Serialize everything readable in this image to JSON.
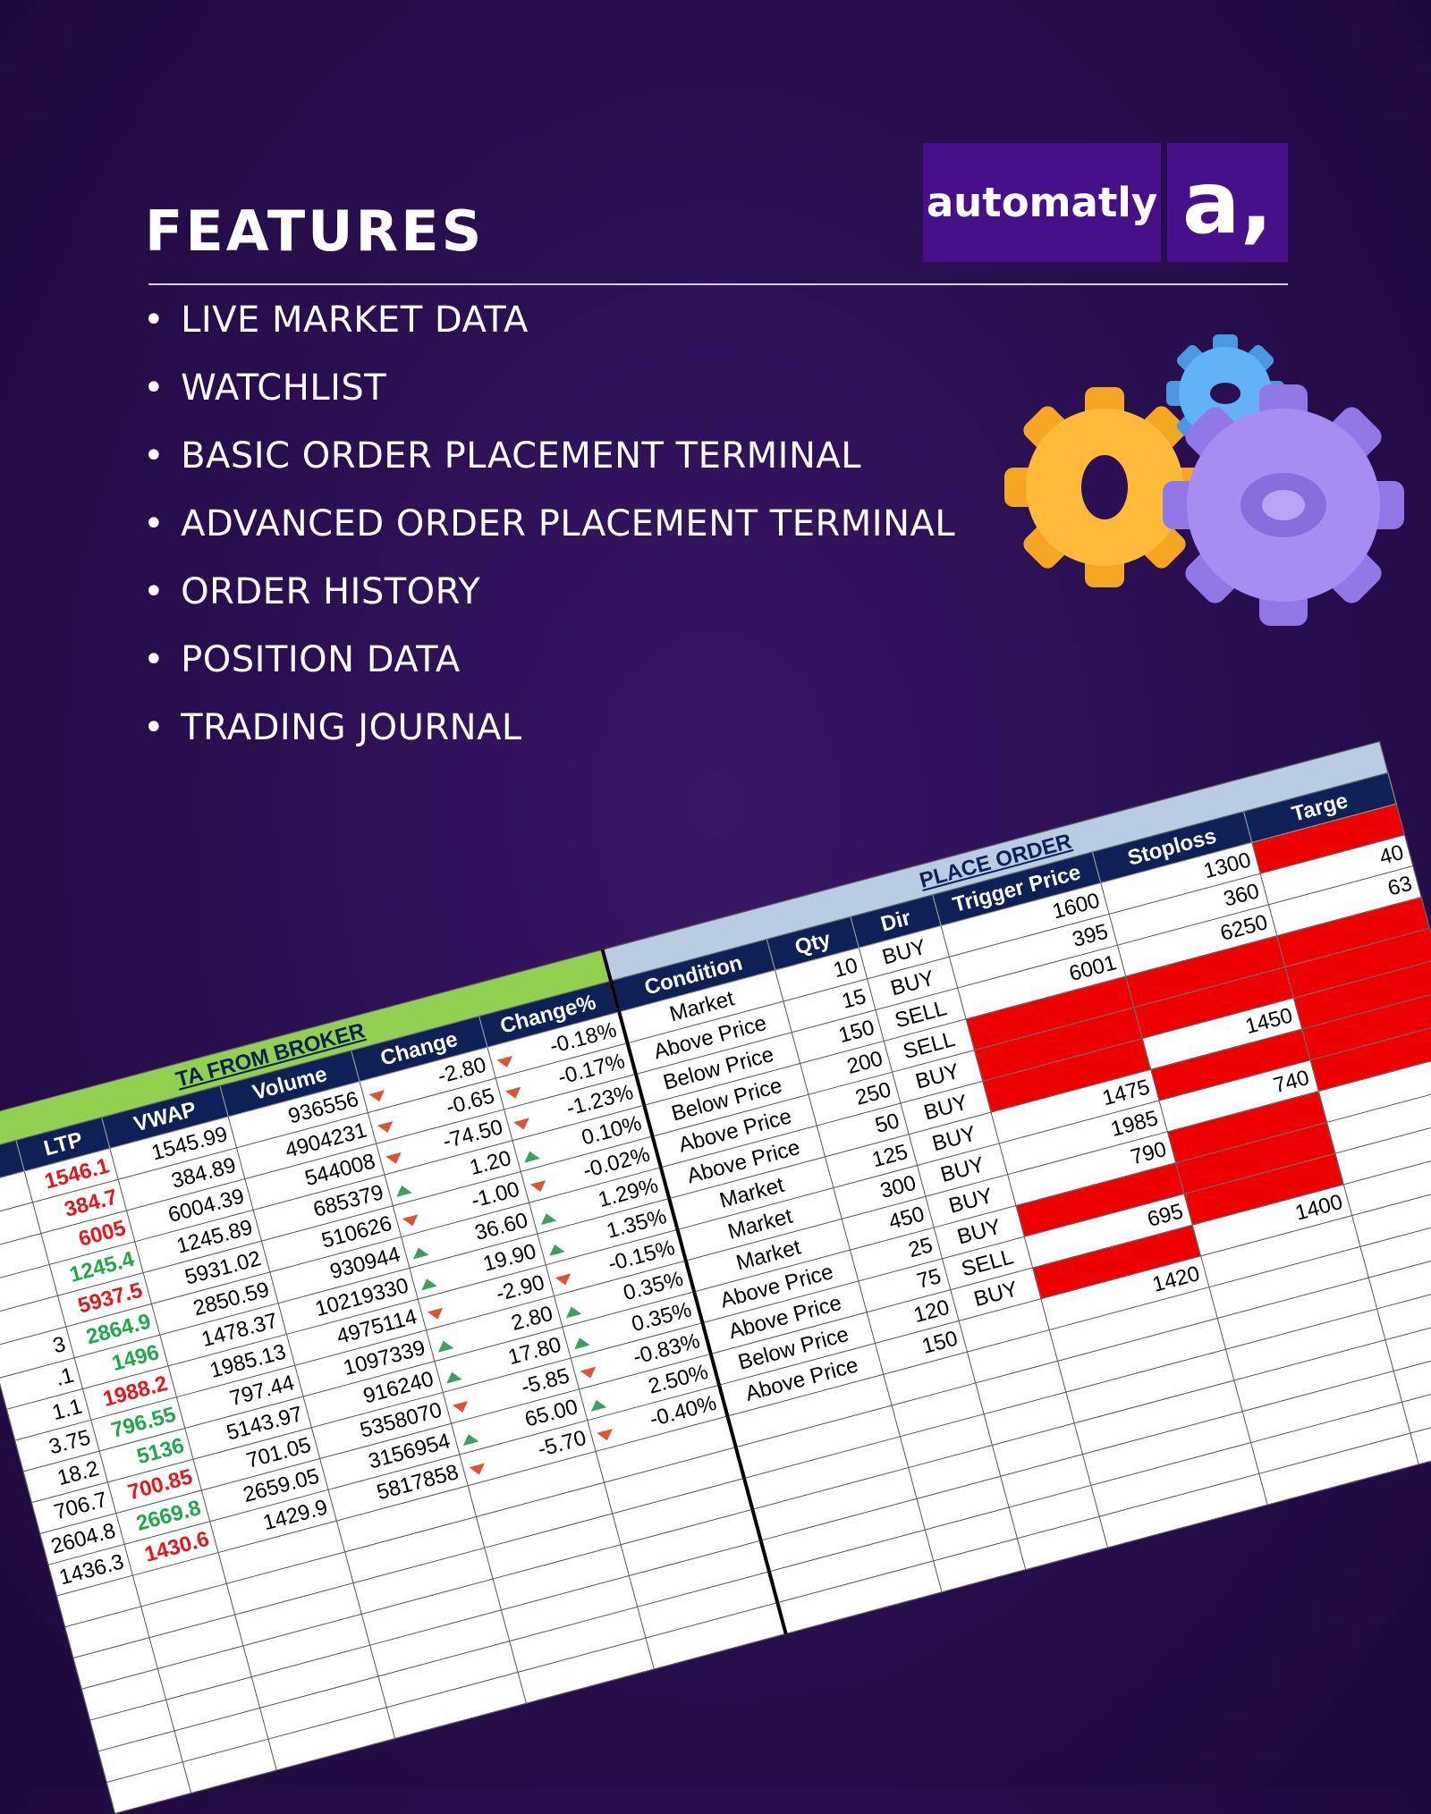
{
  "header": {
    "title": "FEATURES"
  },
  "logo": {
    "text": "automatly",
    "mark": "a,"
  },
  "features": [
    "LIVE MARKET DATA",
    "WATCHLIST",
    "BASIC ORDER PLACEMENT TERMINAL",
    "ADVANCED ORDER PLACEMENT TERMINAL",
    "ORDER HISTORY",
    "POSITION DATA",
    "TRADING JOURNAL"
  ],
  "table": {
    "left_title": "TA FROM BROKER",
    "right_title": "PLACE ORDER",
    "columns": [
      null,
      "LTP",
      "VWAP",
      "Volume",
      "Change",
      "Change%",
      "Condition",
      "Qty",
      "Dir",
      "Trigger Price",
      "Stoploss",
      "Targe"
    ],
    "rows": [
      [
        null,
        "1546.1",
        "1545.99",
        "936556",
        "-2.80",
        "-0.18%",
        "Market",
        "10",
        "BUY",
        "1600",
        "1300",
        null
      ],
      [
        null,
        "384.7",
        "384.89",
        "4904231",
        "-0.65",
        "-0.17%",
        "Above Price",
        "15",
        "BUY",
        "395",
        "360",
        "40"
      ],
      [
        null,
        "6005",
        "6004.39",
        "544008",
        "-74.50",
        "-1.23%",
        "Below Price",
        "150",
        "SELL",
        "6001",
        "6250",
        "63"
      ],
      [
        null,
        "1245.4",
        "1245.89",
        "685379",
        "1.20",
        "0.10%",
        "Below Price",
        "200",
        "SELL",
        null,
        null,
        null
      ],
      [
        null,
        "5937.5",
        "5931.02",
        "510626",
        "-1.00",
        "-0.02%",
        "Above Price",
        "250",
        "BUY",
        null,
        null,
        null
      ],
      [
        "3",
        "2864.9",
        "2850.59",
        "930944",
        "36.60",
        "1.29%",
        "Above Price",
        "50",
        "BUY",
        null,
        "1450",
        null
      ],
      [
        ".1",
        "1496",
        "1478.37",
        "10219330",
        "19.90",
        "1.35%",
        "Market",
        "125",
        "BUY",
        "1475",
        null,
        null
      ],
      [
        "1.1",
        "1988.2",
        "1985.13",
        "4975114",
        "-2.90",
        "-0.15%",
        "Market",
        "300",
        "BUY",
        "1985",
        "740",
        null
      ],
      [
        "3.75",
        "796.55",
        "797.44",
        "1097339",
        "2.80",
        "0.35%",
        "Market",
        "450",
        "BUY",
        "790",
        null,
        null
      ],
      [
        "18.2",
        "5136",
        "5143.97",
        "916240",
        "17.80",
        "0.35%",
        "Above Price",
        "25",
        "BUY",
        null,
        null,
        null
      ],
      [
        "706.7",
        "700.85",
        "701.05",
        "5358070",
        "-5.85",
        "-0.83%",
        "Above Price",
        "75",
        "SELL",
        "695",
        null,
        null
      ],
      [
        "2604.8",
        "2669.8",
        "2659.05",
        "3156954",
        "65.00",
        "2.50%",
        "Below Price",
        "120",
        "BUY",
        null,
        "1400",
        null
      ],
      [
        "1436.3",
        "1430.6",
        "1429.9",
        "5817858",
        "-5.70",
        "-0.40%",
        "Above Price",
        "150",
        null,
        "1420",
        null,
        null
      ]
    ]
  }
}
